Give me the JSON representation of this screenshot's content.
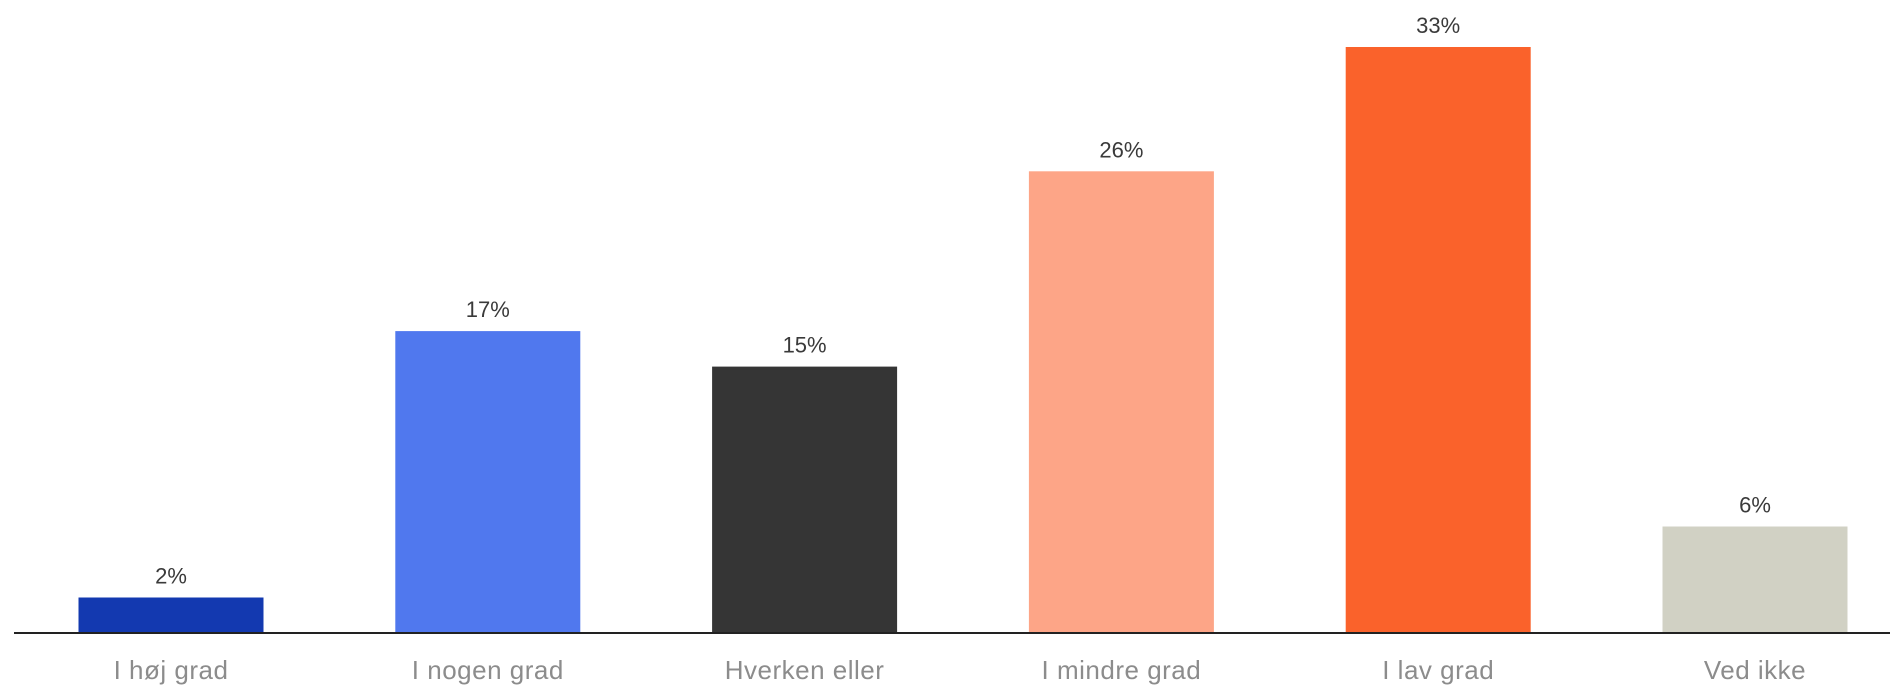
{
  "chart_data": {
    "type": "bar",
    "title": "",
    "xlabel": "",
    "ylabel": "",
    "ylim": [
      0,
      33
    ],
    "grid": false,
    "legend": "none",
    "value_suffix": "%",
    "categories": [
      "I høj grad",
      "I nogen grad",
      "Hverken eller",
      "I mindre grad",
      "I lav grad",
      "Ved ikke"
    ],
    "values": [
      2,
      17,
      15,
      26,
      33,
      6
    ],
    "value_labels": [
      "2%",
      "17%",
      "15%",
      "26%",
      "33%",
      "6%"
    ],
    "colors": [
      "#1339b0",
      "#5078ee",
      "#353535",
      "#fda587",
      "#fa622b",
      "#d1d1c4"
    ]
  }
}
